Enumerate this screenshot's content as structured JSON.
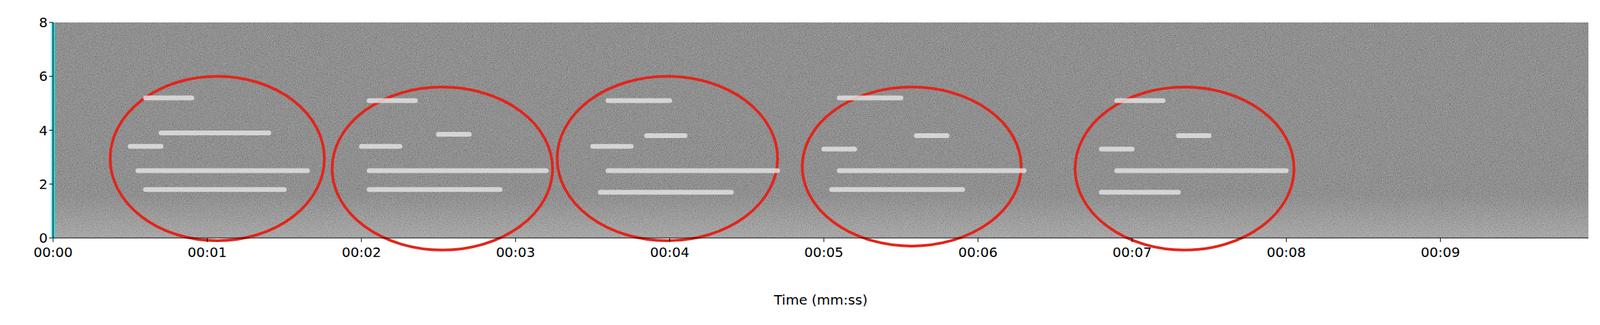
{
  "chart_data": {
    "type": "spectrogram",
    "x_label": "Time (mm:ss)",
    "xlim": [
      0,
      9.96
    ],
    "xticks": [
      {
        "value": 0,
        "label": "00:00"
      },
      {
        "value": 1,
        "label": "00:01"
      },
      {
        "value": 2,
        "label": "00:02"
      },
      {
        "value": 3,
        "label": "00:03"
      },
      {
        "value": 4,
        "label": "00:04"
      },
      {
        "value": 5,
        "label": "00:05"
      },
      {
        "value": 6,
        "label": "00:06"
      },
      {
        "value": 7,
        "label": "00:07"
      },
      {
        "value": 8,
        "label": "00:08"
      },
      {
        "value": 9,
        "label": "00:09"
      }
    ],
    "ylim": [
      0,
      8
    ],
    "yticks": [
      0,
      2,
      4,
      6,
      8
    ],
    "color": "#e4e4e4",
    "segments": [
      {
        "x": [
          0.6,
          0.9
        ],
        "y": 5.2
      },
      {
        "x": [
          0.7,
          1.4
        ],
        "y": 3.9
      },
      {
        "x": [
          0.5,
          0.7
        ],
        "y": 3.4
      },
      {
        "x": [
          0.55,
          1.65
        ],
        "y": 2.5
      },
      {
        "x": [
          0.6,
          1.5
        ],
        "y": 1.8
      },
      {
        "x": [
          2.05,
          2.35
        ],
        "y": 5.1
      },
      {
        "x": [
          2.5,
          2.7
        ],
        "y": 3.85
      },
      {
        "x": [
          2.0,
          2.25
        ],
        "y": 3.4
      },
      {
        "x": [
          2.05,
          3.2
        ],
        "y": 2.5
      },
      {
        "x": [
          2.05,
          2.9
        ],
        "y": 1.8
      },
      {
        "x": [
          3.6,
          4.0
        ],
        "y": 5.1
      },
      {
        "x": [
          3.85,
          4.1
        ],
        "y": 3.8
      },
      {
        "x": [
          3.5,
          3.75
        ],
        "y": 3.4
      },
      {
        "x": [
          3.6,
          4.7
        ],
        "y": 2.5
      },
      {
        "x": [
          3.55,
          4.4
        ],
        "y": 1.7
      },
      {
        "x": [
          5.1,
          5.5
        ],
        "y": 5.2
      },
      {
        "x": [
          5.6,
          5.8
        ],
        "y": 3.8
      },
      {
        "x": [
          5.0,
          5.2
        ],
        "y": 3.3
      },
      {
        "x": [
          5.1,
          6.3
        ],
        "y": 2.5
      },
      {
        "x": [
          5.05,
          5.9
        ],
        "y": 1.8
      },
      {
        "x": [
          6.9,
          7.2
        ],
        "y": 5.1
      },
      {
        "x": [
          7.3,
          7.5
        ],
        "y": 3.8
      },
      {
        "x": [
          6.8,
          7.0
        ],
        "y": 3.3
      },
      {
        "x": [
          6.9,
          8.0
        ],
        "y": 2.5
      },
      {
        "x": [
          6.8,
          7.3
        ],
        "y": 1.7
      }
    ],
    "annotations": [
      {
        "shape": "ellipse",
        "color": "#e3241a",
        "x": [
          0.37,
          1.76
        ],
        "y": [
          -0.1,
          6.0
        ]
      },
      {
        "shape": "ellipse",
        "color": "#e3241a",
        "x": [
          1.81,
          3.24
        ],
        "y": [
          -0.45,
          5.6
        ]
      },
      {
        "shape": "ellipse",
        "color": "#e3241a",
        "x": [
          3.27,
          4.7
        ],
        "y": [
          -0.1,
          6.0
        ]
      },
      {
        "shape": "ellipse",
        "color": "#e3241a",
        "x": [
          4.86,
          6.28
        ],
        "y": [
          -0.3,
          5.6
        ]
      },
      {
        "shape": "ellipse",
        "color": "#e3241a",
        "x": [
          6.63,
          8.05
        ],
        "y": [
          -0.45,
          5.6
        ]
      }
    ]
  }
}
